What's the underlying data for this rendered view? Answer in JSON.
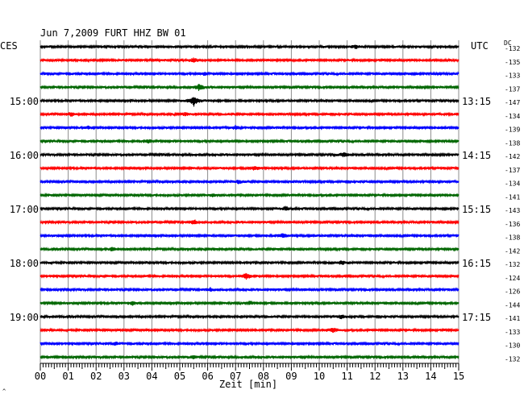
{
  "chart_data": {
    "type": "line",
    "title": "Jun 7,2009   FURT HHZ BW 01",
    "left_timezone": "CES",
    "right_timezone": "UTC",
    "dc_label": "DC",
    "xlabel": "Zeit [min]",
    "xlim": [
      0,
      15
    ],
    "x_ticks": [
      "00",
      "01",
      "02",
      "03",
      "04",
      "05",
      "06",
      "07",
      "08",
      "09",
      "10",
      "11",
      "12",
      "13",
      "14",
      "15"
    ],
    "grid": true,
    "corner_mark": "^",
    "trace_colors": [
      "#000000",
      "#ff0000",
      "#0000ff",
      "#006600"
    ],
    "left_hour_labels": [
      {
        "row": 4,
        "text": "15:00"
      },
      {
        "row": 8,
        "text": "16:00"
      },
      {
        "row": 12,
        "text": "17:00"
      },
      {
        "row": 16,
        "text": "18:00"
      },
      {
        "row": 20,
        "text": "19:00"
      }
    ],
    "right_hour_labels": [
      {
        "row": 4,
        "text": "13:15"
      },
      {
        "row": 8,
        "text": "14:15"
      },
      {
        "row": 12,
        "text": "15:15"
      },
      {
        "row": 16,
        "text": "16:15"
      },
      {
        "row": 20,
        "text": "17:15"
      }
    ],
    "dc_offsets": [
      "-132",
      "-135",
      "-133",
      "-137",
      "-147",
      "-134",
      "-139",
      "-138",
      "-142",
      "-137",
      "-134",
      "-141",
      "-143",
      "-136",
      "-138",
      "-142",
      "-132",
      "-124",
      "-126",
      "-144",
      "-141",
      "-133",
      "-130",
      "-132"
    ],
    "events": [
      {
        "row": 0,
        "minute": 11.3,
        "amplitude": 2.0
      },
      {
        "row": 1,
        "minute": 5.5,
        "amplitude": 2.5
      },
      {
        "row": 2,
        "minute": 5.9,
        "amplitude": 1.6
      },
      {
        "row": 3,
        "minute": 5.7,
        "amplitude": 3.5
      },
      {
        "row": 4,
        "minute": 5.5,
        "amplitude": 6.0
      },
      {
        "row": 5,
        "minute": 1.1,
        "amplitude": 2.2
      },
      {
        "row": 5,
        "minute": 5.2,
        "amplitude": 1.6
      },
      {
        "row": 6,
        "minute": 1.7,
        "amplitude": 1.6
      },
      {
        "row": 6,
        "minute": 7.0,
        "amplitude": 2.0
      },
      {
        "row": 7,
        "minute": 3.9,
        "amplitude": 2.0
      },
      {
        "row": 8,
        "minute": 10.9,
        "amplitude": 3.0
      },
      {
        "row": 9,
        "minute": 7.7,
        "amplitude": 2.2
      },
      {
        "row": 10,
        "minute": 7.1,
        "amplitude": 1.8
      },
      {
        "row": 11,
        "minute": 6.2,
        "amplitude": 1.8
      },
      {
        "row": 12,
        "minute": 8.8,
        "amplitude": 2.2
      },
      {
        "row": 13,
        "minute": 5.5,
        "amplitude": 2.5
      },
      {
        "row": 14,
        "minute": 8.7,
        "amplitude": 2.5
      },
      {
        "row": 15,
        "minute": 2.6,
        "amplitude": 2.2
      },
      {
        "row": 16,
        "minute": 10.8,
        "amplitude": 1.8
      },
      {
        "row": 17,
        "minute": 7.4,
        "amplitude": 3.5
      },
      {
        "row": 18,
        "minute": 6.1,
        "amplitude": 1.6
      },
      {
        "row": 19,
        "minute": 3.3,
        "amplitude": 2.0
      },
      {
        "row": 19,
        "minute": 7.5,
        "amplitude": 2.0
      },
      {
        "row": 20,
        "minute": 10.8,
        "amplitude": 2.5
      },
      {
        "row": 21,
        "minute": 10.5,
        "amplitude": 2.8
      },
      {
        "row": 22,
        "minute": 2.7,
        "amplitude": 1.6
      },
      {
        "row": 23,
        "minute": 5.5,
        "amplitude": 1.8
      }
    ]
  }
}
